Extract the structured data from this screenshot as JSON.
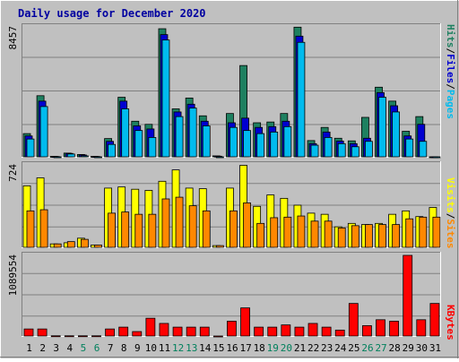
{
  "chart_data": [
    {
      "type": "bar",
      "title": "Daily usage for December 2020",
      "panel": "hits-files-pages",
      "ymax_label": "8457",
      "ylim": [
        0,
        8457
      ],
      "legend": [
        "Pages",
        "Files",
        "Hits"
      ],
      "categories": [
        "1",
        "2",
        "3",
        "4",
        "5",
        "6",
        "7",
        "8",
        "9",
        "10",
        "11",
        "12",
        "13",
        "14",
        "15",
        "16",
        "17",
        "18",
        "19",
        "20",
        "21",
        "22",
        "23",
        "24",
        "25",
        "26",
        "27",
        "28",
        "29",
        "30",
        "31"
      ],
      "series": [
        {
          "name": "Hits",
          "values": [
            1500,
            3950,
            30,
            240,
            150,
            30,
            1180,
            3850,
            2300,
            2100,
            8280,
            3100,
            3800,
            2650,
            60,
            2800,
            5900,
            2200,
            2250,
            2800,
            8380,
            1050,
            1900,
            1200,
            1030,
            2550,
            4500,
            3600,
            1650,
            2600,
            0
          ]
        },
        {
          "name": "Files",
          "values": [
            1350,
            3600,
            20,
            220,
            120,
            20,
            1000,
            3600,
            2000,
            1800,
            7900,
            2900,
            3400,
            2300,
            40,
            2200,
            2500,
            1900,
            1950,
            2300,
            7800,
            850,
            1600,
            1020,
            850,
            1200,
            4150,
            3300,
            1350,
            2100,
            0
          ]
        },
        {
          "name": "Pages",
          "values": [
            1150,
            3250,
            0,
            180,
            60,
            0,
            800,
            3100,
            1700,
            1250,
            7550,
            2600,
            3150,
            2000,
            0,
            1900,
            1700,
            1500,
            1600,
            1950,
            7400,
            750,
            1250,
            850,
            650,
            1000,
            3850,
            2900,
            1150,
            1000,
            0
          ]
        }
      ]
    },
    {
      "type": "bar",
      "panel": "visits-sites",
      "ymax_label": "724",
      "ylim": [
        0,
        724
      ],
      "legend": [
        "Sites",
        "Visits"
      ],
      "categories": [
        "1",
        "2",
        "3",
        "4",
        "5",
        "6",
        "7",
        "8",
        "9",
        "10",
        "11",
        "12",
        "13",
        "14",
        "15",
        "16",
        "17",
        "18",
        "19",
        "20",
        "21",
        "22",
        "23",
        "24",
        "25",
        "26",
        "27",
        "28",
        "29",
        "30",
        "31"
      ],
      "series": [
        {
          "name": "Visits",
          "values": [
            540,
            610,
            30,
            40,
            80,
            20,
            520,
            530,
            510,
            500,
            580,
            680,
            520,
            515,
            15,
            520,
            720,
            360,
            460,
            430,
            370,
            300,
            290,
            180,
            210,
            200,
            210,
            290,
            320,
            270,
            350
          ]
        },
        {
          "name": "Sites",
          "values": [
            320,
            330,
            30,
            50,
            70,
            20,
            300,
            310,
            290,
            290,
            425,
            440,
            365,
            320,
            15,
            320,
            390,
            210,
            260,
            265,
            275,
            230,
            230,
            170,
            190,
            200,
            200,
            200,
            250,
            265,
            265
          ]
        }
      ]
    },
    {
      "type": "bar",
      "panel": "kbytes",
      "ymax_label": "1089554",
      "ylim": [
        0,
        1089554
      ],
      "legend": [
        "KBytes"
      ],
      "categories": [
        "1",
        "2",
        "3",
        "4",
        "5",
        "6",
        "7",
        "8",
        "9",
        "10",
        "11",
        "12",
        "13",
        "14",
        "15",
        "16",
        "17",
        "18",
        "19",
        "20",
        "21",
        "22",
        "23",
        "24",
        "25",
        "26",
        "27",
        "28",
        "29",
        "30",
        "31"
      ],
      "series": [
        {
          "name": "KBytes",
          "values": [
            95000,
            95000,
            3000,
            3000,
            3000,
            3000,
            95000,
            120000,
            60000,
            240000,
            170000,
            120000,
            120000,
            120000,
            0,
            200000,
            380000,
            120000,
            120000,
            150000,
            120000,
            170000,
            120000,
            80000,
            440000,
            140000,
            220000,
            200000,
            1089554,
            220000,
            440000
          ]
        }
      ]
    }
  ],
  "axis_day_colors": [
    "#000000",
    "#000000",
    "#000000",
    "#000000",
    "#00805c",
    "#00805c",
    "#000000",
    "#000000",
    "#000000",
    "#000000",
    "#000000",
    "#00805c",
    "#00805c",
    "#000000",
    "#000000",
    "#000000",
    "#000000",
    "#000000",
    "#00805c",
    "#00805c",
    "#000000",
    "#000000",
    "#000000",
    "#000000",
    "#000000",
    "#00805c",
    "#00805c",
    "#000000",
    "#000000",
    "#000000",
    "#000000"
  ],
  "colors": {
    "Hits": "#1e8060",
    "Files": "#0000d0",
    "Pages": "#00bbee",
    "Visits": "#ffff00",
    "Sites": "#ff8800",
    "KBytes": "#ff0000",
    "panel_bg": "#c0c0c0",
    "title": "#0000a0"
  }
}
